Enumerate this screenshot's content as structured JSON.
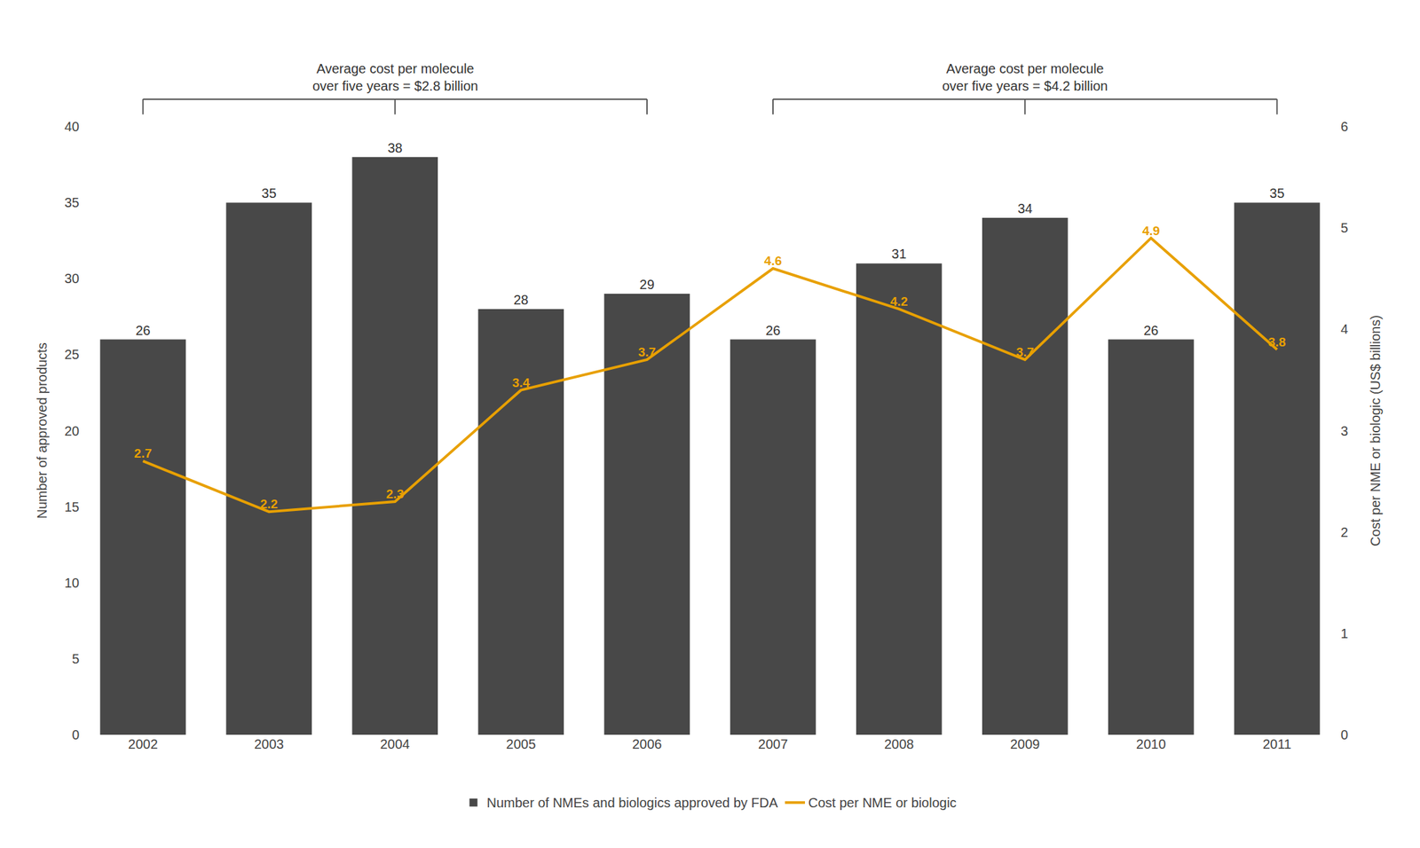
{
  "chart_data": {
    "type": "bar",
    "categories": [
      "2002",
      "2003",
      "2004",
      "2005",
      "2006",
      "2007",
      "2008",
      "2009",
      "2010",
      "2011"
    ],
    "series": [
      {
        "name": "Number of NMEs and biologics approved by FDA",
        "type": "bar",
        "color": "#484848",
        "values": [
          26,
          35,
          38,
          28,
          29,
          26,
          31,
          34,
          26,
          35
        ],
        "data_labels": true
      },
      {
        "name": "Cost per NME or biologic",
        "type": "line",
        "axis": "y2",
        "color": "#E8A000",
        "values": [
          2.7,
          2.2,
          2.3,
          3.4,
          3.7,
          4.6,
          4.2,
          3.7,
          4.9,
          3.8
        ],
        "data_labels": true
      }
    ],
    "ylabel": "Number of approved products",
    "y2label": "Cost per NME or biologic (US$ billions)",
    "ylim": [
      0,
      40
    ],
    "yticks": [
      0,
      5,
      10,
      15,
      20,
      25,
      30,
      35,
      40
    ],
    "y2lim": [
      0,
      6
    ],
    "y2ticks": [
      0,
      1,
      2,
      3,
      4,
      5,
      6
    ],
    "annotations": [
      {
        "text": "Average cost per molecule\nover five years = $2.8 billion",
        "x": [
          "2002",
          "2006"
        ]
      },
      {
        "text": "Average cost per molecule\nover five years = $4.2 billion",
        "x": [
          "2007",
          "2011"
        ]
      }
    ],
    "grid": false,
    "legend": "bottom"
  }
}
